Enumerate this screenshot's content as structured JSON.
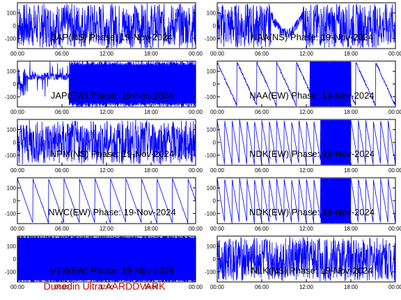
{
  "footer_text": "Dunedin Ultra AARDDVARK",
  "colors": {
    "trace": "#0000ff",
    "axes": "#000000",
    "footer": "#cc0000"
  },
  "chart_data": [
    {
      "type": "line",
      "title": "JAP(NS) Phase: 19-Nov-2024",
      "x_ticks": [
        "00:00",
        "06:00",
        "12:00",
        "18:00",
        "00:00"
      ],
      "y_ticks": [
        "100",
        "0",
        "-100"
      ],
      "ylim": [
        -180,
        180
      ],
      "pattern": "noise"
    },
    {
      "type": "line",
      "title": "NAA(NS) Phase: 19-Nov-2024",
      "x_ticks": [
        "00:00",
        "06:00",
        "12:00",
        "18:00",
        "00:00"
      ],
      "y_ticks": [
        "100",
        "0",
        "-100"
      ],
      "ylim": [
        -180,
        180
      ],
      "pattern": "noise_dip"
    },
    {
      "type": "line",
      "title": "JAP(EW) Phase: 19-Nov-2024",
      "x_ticks": [
        "00:00",
        "06:00",
        "12:00",
        "18:00",
        "00:00"
      ],
      "y_ticks": [
        "100",
        "0",
        "-100"
      ],
      "ylim": [
        -180,
        180
      ],
      "pattern": "solid_after"
    },
    {
      "type": "line",
      "title": "NAA(EW) Phase: 19-Nov-2024",
      "x_ticks": [
        "00:00",
        "06:00",
        "12:00",
        "18:00",
        "00:00"
      ],
      "y_ticks": [
        "100",
        "0",
        "-100"
      ],
      "ylim": [
        -180,
        180
      ],
      "pattern": "ramps_block"
    },
    {
      "type": "line",
      "title": "NPM(NS) Phase: 19-Nov-2024",
      "x_ticks": [
        "00:00",
        "06:00",
        "12:00",
        "18:00",
        "00:00"
      ],
      "y_ticks": [
        "100",
        "0",
        "-100"
      ],
      "ylim": [
        -180,
        180
      ],
      "pattern": "noise"
    },
    {
      "type": "line",
      "title": "NDK(EW) Phase: 19-Nov-2024",
      "x_ticks": [
        "00:00",
        "06:00",
        "12:00",
        "18:00",
        "00:00"
      ],
      "y_ticks": [
        "100",
        "0",
        "-100"
      ],
      "ylim": [
        -180,
        180
      ],
      "pattern": "sawtooth_block"
    },
    {
      "type": "line",
      "title": "NWC(EW) Phase: 19-Nov-2024",
      "x_ticks": [
        "00:00",
        "06:00",
        "12:00",
        "18:00",
        "00:00"
      ],
      "y_ticks": [
        "100",
        "0",
        "-100"
      ],
      "ylim": [
        -180,
        180
      ],
      "pattern": "sawtooth_slow"
    },
    {
      "type": "line",
      "title": "NDK(EW) Phase: 19-Nov-2024",
      "x_ticks": [
        "00:00",
        "06:00",
        "12:00",
        "18:00",
        "00:00"
      ],
      "y_ticks": [
        "100",
        "0",
        "-100"
      ],
      "ylim": [
        -180,
        180
      ],
      "pattern": "sawtooth_block"
    },
    {
      "type": "line",
      "title": "VTX(EW) Phase: 19-Nov-2024",
      "x_ticks": [
        "00:00",
        "06:00",
        "12:00",
        "18:00",
        "00:00"
      ],
      "y_ticks": [
        "100",
        "0",
        "-100"
      ],
      "ylim": [
        -180,
        180
      ],
      "pattern": "solid_full"
    },
    {
      "type": "line",
      "title": "NLK(NS) Phase: 19-Nov-2024",
      "x_ticks": [
        "00:00",
        "06:00",
        "12:00",
        "18:00",
        "00:00"
      ],
      "y_ticks": [
        "100",
        "0",
        "-100"
      ],
      "ylim": [
        -180,
        180
      ],
      "pattern": "noise"
    }
  ]
}
